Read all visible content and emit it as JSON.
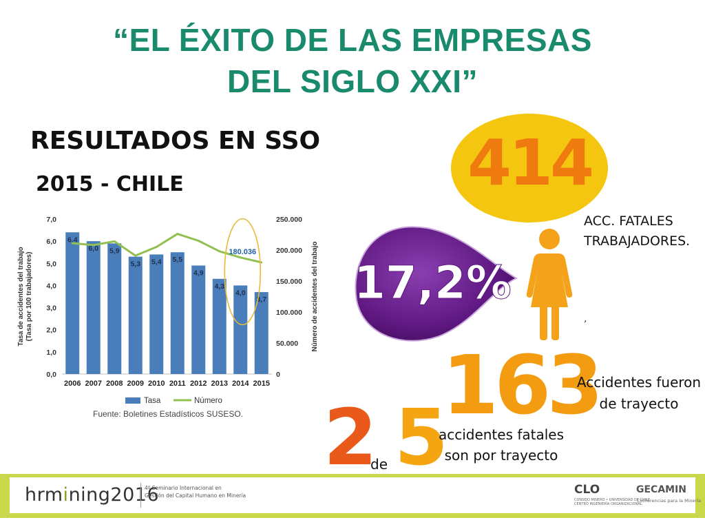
{
  "title": {
    "line1": "“EL ÉXITO DE LAS EMPRESAS",
    "line2": "DEL SIGLO XXI”"
  },
  "subtitle": "RESULTADOS EN SSO",
  "subtitle2": "2015 - CHILE",
  "chart_data": {
    "type": "bar",
    "categories": [
      "2006",
      "2007",
      "2008",
      "2009",
      "2010",
      "2011",
      "2012",
      "2013",
      "2014",
      "2015"
    ],
    "series": [
      {
        "name": "Tasa",
        "type": "bar",
        "axis": "left",
        "color": "#4a7ebb",
        "values": [
          6.4,
          6.0,
          5.9,
          5.3,
          5.4,
          5.5,
          4.9,
          4.3,
          4.0,
          3.7
        ],
        "labels": [
          "6,4",
          "6,0",
          "5,9",
          "5,3",
          "5,4",
          "5,5",
          "4,9",
          "4,3",
          "4,0",
          "3,7"
        ]
      },
      {
        "name": "Número",
        "type": "line",
        "axis": "right",
        "color": "#92c050",
        "values": [
          211000,
          208000,
          214000,
          191000,
          205000,
          226000,
          215000,
          198000,
          188000,
          180036
        ]
      }
    ],
    "ylabel": "Tasa de accidentes del trabajo (Tasa por 100 trabajadores)",
    "ylabel2": "Número de accidentes del trabajo",
    "ylim": [
      0,
      7
    ],
    "y2lim": [
      0,
      250000
    ],
    "yticks": [
      "0,0",
      "1,0",
      "2,0",
      "3,0",
      "4,0",
      "5,0",
      "6,0",
      "7,0"
    ],
    "y2ticks": [
      "0",
      "50.000",
      "100.000",
      "150.000",
      "200.000",
      "250.000"
    ],
    "annotation": "180.036",
    "annotation_color": "#1f5fa8",
    "highlight_color": "#e8b93a",
    "source": "Fuente: Boletines Estadísticos SUSESO.",
    "grid": false,
    "legend_position": "bottom"
  },
  "stats": {
    "big414": "414",
    "acc_fatales": {
      "line1": "ACC. FATALES",
      "line2": "TRABAJADORES."
    },
    "pct": "17,2%",
    "comma_mark": ",",
    "big163": "163",
    "trayecto_text": {
      "line1": "Accidentes fueron",
      "line2": "de trayecto"
    },
    "two": "2",
    "de": "de",
    "five": "5",
    "acc_tray_text": {
      "line1": "accidentes fatales",
      "line2": "son por trayecto"
    }
  },
  "footer": {
    "logo_main": "hrm",
    "logo_i": "i",
    "logo_rest": "ning2016",
    "desc": {
      "line1": "4º Seminario Internacional en",
      "line2": "Gestión del Capital Humano en Minería"
    },
    "clo": "CLO",
    "clo_sub": {
      "line1": "CONSEJO MINERO • UNIVERSIDAD DE CHILE",
      "line2": "CENTRO INGENIERÍA ORGANIZACIONAL"
    },
    "gecamin": "GECAMIN",
    "gecamin_sub": "Conferencias para la Minería"
  },
  "colors": {
    "title": "#1a8a6c",
    "oval": "#f4c60f",
    "orange414": "#ef7a10",
    "drop": "#6a1b8c",
    "person": "#f4a21a",
    "footer": "#c8d84a"
  }
}
